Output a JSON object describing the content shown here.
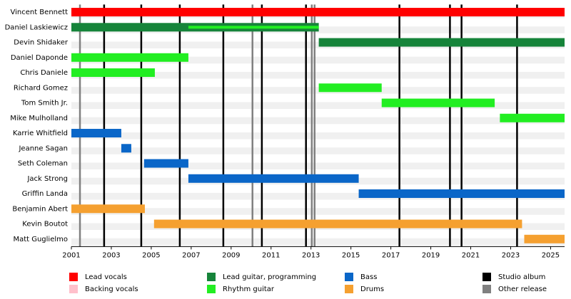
{
  "chart_data": {
    "type": "timeline",
    "xlim": [
      2001,
      2025.7
    ],
    "xticks": [
      2001,
      2003,
      2005,
      2007,
      2009,
      2011,
      2013,
      2015,
      2017,
      2019,
      2021,
      2023,
      2025
    ],
    "roles": [
      {
        "name": "Lead vocals",
        "color": "#ff0000"
      },
      {
        "name": "Backing vocals",
        "color": "#ffc0cb"
      },
      {
        "name": "Lead guitar, programming",
        "color": "#16843a"
      },
      {
        "name": "Rhythm guitar",
        "color": "#22ee22"
      },
      {
        "name": "Bass",
        "color": "#0a66c8"
      },
      {
        "name": "Drums",
        "color": "#f5a030"
      }
    ],
    "events": [
      {
        "name": "Studio album",
        "color": "#000000",
        "x": [
          2002.64,
          2004.5,
          2006.43,
          2008.61,
          2010.54,
          2012.75,
          2017.43,
          2019.96,
          2020.54,
          2023.32
        ]
      },
      {
        "name": "Other release",
        "color": "#808080",
        "x": [
          2001.43,
          2010.07,
          2013.04,
          2013.18
        ]
      }
    ],
    "rows": [
      {
        "label": "Vincent Bennett",
        "bars": [
          {
            "role": "Lead vocals",
            "start": 2001,
            "end": 2025.7
          }
        ]
      },
      {
        "label": "Daniel Laskiewicz",
        "bars": [
          {
            "role": "Lead guitar, programming",
            "start": 2001,
            "end": 2013.39
          },
          {
            "role": "Rhythm guitar",
            "start": 2006.86,
            "end": 2013.39
          }
        ]
      },
      {
        "label": "Devin Shidaker",
        "bars": [
          {
            "role": "Lead guitar, programming",
            "start": 2013.39,
            "end": 2025.7
          }
        ]
      },
      {
        "label": "Daniel Daponde",
        "bars": [
          {
            "role": "Rhythm guitar",
            "start": 2001,
            "end": 2006.86
          }
        ]
      },
      {
        "label": "Chris Daniele",
        "bars": [
          {
            "role": "Rhythm guitar",
            "start": 2001,
            "end": 2005.18
          }
        ]
      },
      {
        "label": "Richard Gomez",
        "bars": [
          {
            "role": "Rhythm guitar",
            "start": 2013.39,
            "end": 2016.54
          }
        ]
      },
      {
        "label": "Tom Smith Jr.",
        "bars": [
          {
            "role": "Rhythm guitar",
            "start": 2016.54,
            "end": 2022.2
          }
        ]
      },
      {
        "label": "Mike Mulholland",
        "bars": [
          {
            "role": "Rhythm guitar",
            "start": 2022.46,
            "end": 2025.7
          }
        ]
      },
      {
        "label": "Karrie Whitfield",
        "bars": [
          {
            "role": "Bass",
            "start": 2001,
            "end": 2003.5
          }
        ]
      },
      {
        "label": "Jeanne Sagan",
        "bars": [
          {
            "role": "Bass",
            "start": 2003.5,
            "end": 2004.0
          }
        ]
      },
      {
        "label": "Seth Coleman",
        "bars": [
          {
            "role": "Bass",
            "start": 2004.64,
            "end": 2006.86
          }
        ]
      },
      {
        "label": "Jack Strong",
        "bars": [
          {
            "role": "Bass",
            "start": 2006.86,
            "end": 2015.39
          }
        ]
      },
      {
        "label": "Griffin Landa",
        "bars": [
          {
            "role": "Bass",
            "start": 2015.39,
            "end": 2025.7
          }
        ]
      },
      {
        "label": "Benjamin Abert",
        "bars": [
          {
            "role": "Drums",
            "start": 2001,
            "end": 2004.68
          }
        ]
      },
      {
        "label": "Kevin Boutot",
        "bars": [
          {
            "role": "Drums",
            "start": 2005.14,
            "end": 2023.57
          }
        ]
      },
      {
        "label": "Matt Guglielmo",
        "bars": [
          {
            "role": "Drums",
            "start": 2023.68,
            "end": 2025.7
          }
        ]
      }
    ]
  }
}
